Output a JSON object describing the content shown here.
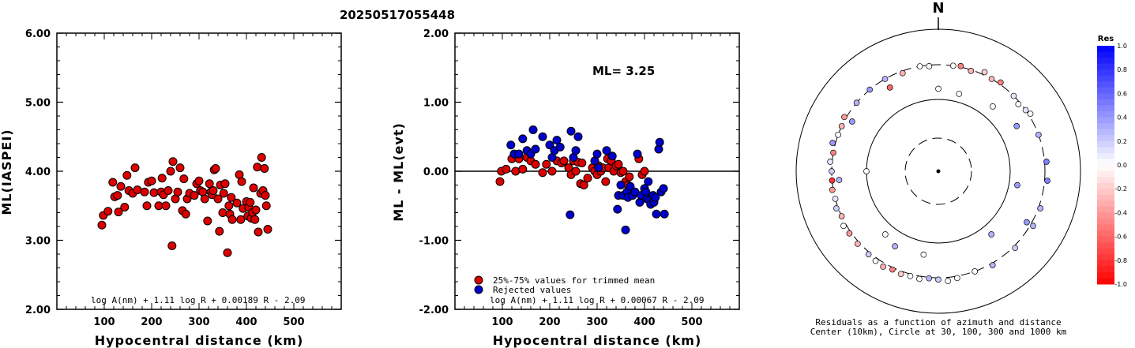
{
  "title": "20250517055448",
  "chart_data": [
    {
      "type": "scatter",
      "xlabel": "Hypocentral distance (km)",
      "ylabel": "ML(IASPEI)",
      "xlim": [
        0,
        600
      ],
      "ylim": [
        2,
        6
      ],
      "xticks": [
        "100",
        "200",
        "300",
        "400",
        "500"
      ],
      "yticks": [
        "2.00",
        "3.00",
        "4.00",
        "5.00",
        "6.00"
      ],
      "formula": "log A(nm) + 1.11 log R + 0.00189 R - 2.09",
      "color": "#dd0000",
      "points": [
        [
          95,
          3.22
        ],
        [
          98,
          3.36
        ],
        [
          108,
          3.42
        ],
        [
          118,
          3.84
        ],
        [
          122,
          3.63
        ],
        [
          128,
          3.65
        ],
        [
          130,
          3.41
        ],
        [
          135,
          3.78
        ],
        [
          143,
          3.48
        ],
        [
          148,
          3.94
        ],
        [
          152,
          3.72
        ],
        [
          160,
          3.68
        ],
        [
          165,
          4.05
        ],
        [
          170,
          3.73
        ],
        [
          185,
          3.7
        ],
        [
          190,
          3.5
        ],
        [
          193,
          3.84
        ],
        [
          200,
          3.86
        ],
        [
          205,
          3.69
        ],
        [
          215,
          3.5
        ],
        [
          220,
          3.7
        ],
        [
          222,
          3.9
        ],
        [
          225,
          3.66
        ],
        [
          230,
          3.5
        ],
        [
          235,
          3.72
        ],
        [
          240,
          4.0
        ],
        [
          243,
          2.92
        ],
        [
          245,
          4.14
        ],
        [
          250,
          3.6
        ],
        [
          255,
          3.7
        ],
        [
          260,
          4.05
        ],
        [
          265,
          3.43
        ],
        [
          268,
          3.89
        ],
        [
          272,
          3.38
        ],
        [
          275,
          3.6
        ],
        [
          280,
          3.68
        ],
        [
          290,
          3.65
        ],
        [
          295,
          3.82
        ],
        [
          300,
          3.86
        ],
        [
          303,
          3.72
        ],
        [
          308,
          3.7
        ],
        [
          312,
          3.6
        ],
        [
          318,
          3.28
        ],
        [
          322,
          3.82
        ],
        [
          325,
          3.7
        ],
        [
          328,
          3.66
        ],
        [
          330,
          3.72
        ],
        [
          332,
          4.02
        ],
        [
          335,
          4.04
        ],
        [
          340,
          3.6
        ],
        [
          343,
          3.13
        ],
        [
          345,
          3.8
        ],
        [
          350,
          3.4
        ],
        [
          352,
          3.68
        ],
        [
          355,
          3.82
        ],
        [
          360,
          2.82
        ],
        [
          363,
          3.5
        ],
        [
          365,
          3.38
        ],
        [
          368,
          3.62
        ],
        [
          370,
          3.3
        ],
        [
          380,
          3.54
        ],
        [
          385,
          3.95
        ],
        [
          388,
          3.3
        ],
        [
          390,
          3.85
        ],
        [
          393,
          3.46
        ],
        [
          400,
          3.56
        ],
        [
          403,
          3.35
        ],
        [
          405,
          3.48
        ],
        [
          408,
          3.55
        ],
        [
          410,
          3.32
        ],
        [
          413,
          3.4
        ],
        [
          415,
          3.76
        ],
        [
          418,
          3.3
        ],
        [
          420,
          3.44
        ],
        [
          423,
          4.06
        ],
        [
          425,
          3.12
        ],
        [
          430,
          3.68
        ],
        [
          432,
          4.2
        ],
        [
          435,
          3.72
        ],
        [
          438,
          4.04
        ],
        [
          440,
          3.65
        ],
        [
          442,
          3.5
        ],
        [
          445,
          3.16
        ]
      ]
    },
    {
      "type": "scatter",
      "xlabel": "Hypocentral distance (km)",
      "ylabel": "ML - ML(evt)",
      "xlim": [
        0,
        600
      ],
      "ylim": [
        -2,
        2
      ],
      "xticks": [
        "100",
        "200",
        "300",
        "400",
        "500"
      ],
      "yticks": [
        "-2.00",
        "-1.00",
        "0.00",
        "1.00",
        "2.00"
      ],
      "annotation": "ML= 3.25",
      "formula": "log A(nm) + 1.11 log R + 0.00067 R - 2.09",
      "legend": [
        "25%-75% values for trimmed mean",
        "Rejected values"
      ],
      "legend_placement": "bottom-left",
      "reference_line": 0,
      "series": [
        {
          "name": "25%-75% values for trimmed mean",
          "color": "#dd0000",
          "points": [
            [
              95,
              -0.15
            ],
            [
              98,
              0.0
            ],
            [
              108,
              0.03
            ],
            [
              120,
              0.18
            ],
            [
              128,
              0.0
            ],
            [
              135,
              0.18
            ],
            [
              143,
              0.03
            ],
            [
              152,
              0.2
            ],
            [
              160,
              0.15
            ],
            [
              170,
              0.1
            ],
            [
              185,
              -0.02
            ],
            [
              193,
              0.1
            ],
            [
              205,
              0.0
            ],
            [
              215,
              0.15
            ],
            [
              225,
              0.12
            ],
            [
              230,
              0.15
            ],
            [
              240,
              0.05
            ],
            [
              245,
              -0.05
            ],
            [
              250,
              0.15
            ],
            [
              255,
              0.0
            ],
            [
              260,
              0.13
            ],
            [
              265,
              -0.18
            ],
            [
              268,
              0.12
            ],
            [
              272,
              -0.2
            ],
            [
              280,
              -0.1
            ],
            [
              290,
              0.05
            ],
            [
              295,
              0.0
            ],
            [
              300,
              -0.05
            ],
            [
              303,
              0.08
            ],
            [
              308,
              0.0
            ],
            [
              312,
              0.05
            ],
            [
              318,
              -0.15
            ],
            [
              322,
              0.18
            ],
            [
              325,
              0.05
            ],
            [
              330,
              0.15
            ],
            [
              335,
              0.0
            ],
            [
              340,
              0.08
            ],
            [
              345,
              0.1
            ],
            [
              350,
              -0.02
            ],
            [
              355,
              0.0
            ],
            [
              360,
              -0.15
            ],
            [
              365,
              -0.2
            ],
            [
              368,
              -0.08
            ],
            [
              388,
              0.18
            ],
            [
              395,
              -0.05
            ],
            [
              400,
              0.0
            ]
          ]
        },
        {
          "name": "Rejected values",
          "color": "#0000cc",
          "points": [
            [
              118,
              0.38
            ],
            [
              125,
              0.25
            ],
            [
              135,
              0.25
            ],
            [
              143,
              0.47
            ],
            [
              152,
              0.3
            ],
            [
              160,
              0.25
            ],
            [
              165,
              0.6
            ],
            [
              170,
              0.32
            ],
            [
              185,
              0.5
            ],
            [
              200,
              0.38
            ],
            [
              205,
              0.2
            ],
            [
              210,
              0.3
            ],
            [
              215,
              0.45
            ],
            [
              222,
              0.35
            ],
            [
              243,
              -0.63
            ],
            [
              245,
              0.58
            ],
            [
              250,
              0.2
            ],
            [
              255,
              0.3
            ],
            [
              260,
              0.5
            ],
            [
              295,
              0.15
            ],
            [
              300,
              0.25
            ],
            [
              303,
              0.05
            ],
            [
              320,
              0.3
            ],
            [
              332,
              0.22
            ],
            [
              343,
              -0.55
            ],
            [
              345,
              -0.35
            ],
            [
              350,
              -0.2
            ],
            [
              355,
              -0.35
            ],
            [
              360,
              -0.85
            ],
            [
              363,
              -0.3
            ],
            [
              365,
              -0.38
            ],
            [
              370,
              -0.22
            ],
            [
              375,
              -0.35
            ],
            [
              380,
              -0.3
            ],
            [
              385,
              0.25
            ],
            [
              390,
              -0.45
            ],
            [
              393,
              -0.35
            ],
            [
              400,
              -0.25
            ],
            [
              403,
              -0.3
            ],
            [
              405,
              -0.4
            ],
            [
              408,
              -0.15
            ],
            [
              410,
              -0.42
            ],
            [
              413,
              -0.48
            ],
            [
              418,
              -0.35
            ],
            [
              420,
              -0.45
            ],
            [
              423,
              -0.38
            ],
            [
              425,
              -0.62
            ],
            [
              430,
              0.32
            ],
            [
              432,
              0.42
            ],
            [
              435,
              -0.3
            ],
            [
              440,
              -0.25
            ],
            [
              442,
              -0.62
            ]
          ]
        }
      ]
    },
    {
      "type": "polar-scatter",
      "north_label": "N",
      "caption": [
        "Residuals as a function of azimuth and distance",
        "Center (10km), Circle at 30, 100, 300 and 1000 km"
      ],
      "colorbar_title": "Res",
      "colorbar_ticks": [
        "1.0",
        "0.8",
        "0.6",
        "0.4",
        "0.2",
        "0.0",
        "-0.2",
        "-0.4",
        "-0.6",
        "-0.8",
        "-1.0"
      ],
      "colorbar_range": [
        -1,
        1
      ],
      "note": "points given as [azimuth_deg, distance_km, residual]",
      "points": [
        [
          8,
          300,
          0.0
        ],
        [
          12,
          310,
          -0.5
        ],
        [
          18,
          290,
          -0.3
        ],
        [
          25,
          330,
          -0.2
        ],
        [
          30,
          300,
          -0.3
        ],
        [
          35,
          320,
          -0.5
        ],
        [
          45,
          300,
          0.1
        ],
        [
          50,
          280,
          0.0
        ],
        [
          55,
          300,
          0.1
        ],
        [
          58,
          320,
          0.0
        ],
        [
          70,
          300,
          0.3
        ],
        [
          85,
          320,
          0.5
        ],
        [
          95,
          330,
          0.5
        ],
        [
          110,
          320,
          0.3
        ],
        [
          120,
          330,
          0.3
        ],
        [
          135,
          320,
          0.2
        ],
        [
          150,
          320,
          0.3
        ],
        [
          160,
          300,
          0.0
        ],
        [
          170,
          320,
          0.0
        ],
        [
          175,
          340,
          0.0
        ],
        [
          180,
          320,
          0.2
        ],
        [
          185,
          310,
          0.3
        ],
        [
          190,
          330,
          0.0
        ],
        [
          195,
          320,
          0.0
        ],
        [
          200,
          330,
          -0.2
        ],
        [
          205,
          320,
          -0.5
        ],
        [
          210,
          340,
          -0.3
        ],
        [
          215,
          330,
          0.0
        ],
        [
          220,
          320,
          0.2
        ],
        [
          228,
          320,
          -0.3
        ],
        [
          235,
          320,
          -0.4
        ],
        [
          240,
          330,
          0.0
        ],
        [
          245,
          300,
          -0.3
        ],
        [
          250,
          320,
          0.2
        ],
        [
          255,
          300,
          0.1
        ],
        [
          260,
          310,
          -0.4
        ],
        [
          265,
          300,
          -0.8
        ],
        [
          270,
          300,
          0.2
        ],
        [
          275,
          320,
          0.1
        ],
        [
          280,
          300,
          -0.5
        ],
        [
          285,
          330,
          0.4
        ],
        [
          290,
          300,
          0.0
        ],
        [
          295,
          300,
          -0.3
        ],
        [
          300,
          320,
          -0.4
        ],
        [
          310,
          300,
          0.3
        ],
        [
          320,
          300,
          0.4
        ],
        [
          330,
          220,
          -0.6
        ],
        [
          340,
          280,
          -0.3
        ],
        [
          350,
          300,
          0.0
        ],
        [
          355,
          290,
          0.0
        ],
        [
          0,
          140,
          0.0
        ],
        [
          15,
          130,
          0.0
        ],
        [
          40,
          150,
          0.0
        ],
        [
          60,
          180,
          0.4
        ],
        [
          100,
          130,
          0.4
        ],
        [
          140,
          140,
          0.3
        ],
        [
          190,
          150,
          0.0
        ],
        [
          220,
          140,
          0.0
        ],
        [
          270,
          100,
          0.0
        ],
        [
          300,
          240,
          0.4
        ],
        [
          330,
          300,
          0.3
        ],
        [
          265,
          240,
          0.3
        ],
        [
          120,
          260,
          0.4
        ],
        [
          210,
          160,
          0.3
        ]
      ]
    }
  ]
}
